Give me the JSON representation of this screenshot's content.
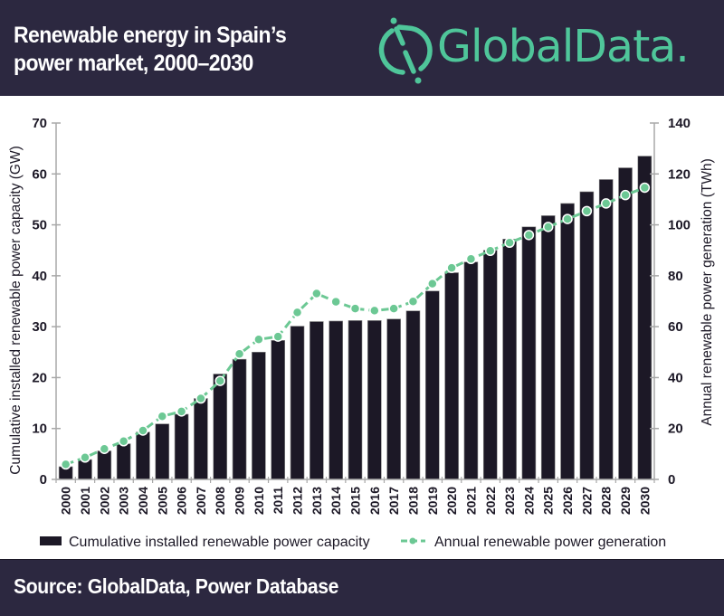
{
  "header": {
    "title_line1": "Renewable energy in Spain’s",
    "title_line2": "power market, 2000–2030",
    "logo_text": "GlobalData.",
    "logo_icon": "globaldata-logo-icon"
  },
  "footer": {
    "source": "Source: GlobalData, Power Database"
  },
  "colors": {
    "background_dark": "#2c2840",
    "bar": "#1c1826",
    "line": "#6cc894",
    "brand": "#4fc69a",
    "axis": "#a8a8a8"
  },
  "chart_data": {
    "type": "bar",
    "title": "Renewable energy in Spain’s power market, 2000–2030",
    "categories": [
      "2000",
      "2001",
      "2002",
      "2003",
      "2004",
      "2005",
      "2006",
      "2007",
      "2008",
      "2009",
      "2010",
      "2011",
      "2012",
      "2013",
      "2014",
      "2015",
      "2016",
      "2017",
      "2018",
      "2019",
      "2020",
      "2021",
      "2022",
      "2023",
      "2024",
      "2025",
      "2026",
      "2027",
      "2028",
      "2029",
      "2030"
    ],
    "series": [
      {
        "name": "Cumulative installed renewable power capacity",
        "type": "bar",
        "axis": "left",
        "unit": "GW",
        "values": [
          2.5,
          3.9,
          5.6,
          7.0,
          9.3,
          10.9,
          12.8,
          15.9,
          20.7,
          23.6,
          25.0,
          27.3,
          30.1,
          31.0,
          31.1,
          31.2,
          31.2,
          31.5,
          33.1,
          37.0,
          40.6,
          42.7,
          45.0,
          47.2,
          49.6,
          51.8,
          54.2,
          56.5,
          58.9,
          61.2,
          63.5
        ]
      },
      {
        "name": "Annual renewable power generation",
        "type": "line",
        "axis": "right",
        "unit": "TWh",
        "values": [
          5.9,
          8.6,
          12.0,
          15.0,
          19.2,
          24.8,
          26.7,
          31.8,
          38.7,
          49.3,
          55.0,
          56.1,
          65.6,
          73.0,
          69.8,
          67.1,
          66.3,
          67.1,
          69.9,
          76.9,
          83.1,
          86.6,
          89.8,
          93.0,
          96.0,
          99.2,
          102.3,
          105.4,
          108.4,
          111.7,
          114.6
        ]
      }
    ],
    "xlabel": "",
    "ylabel": "Cumulative installed renewable power capacity (GW)",
    "ylabel_right": "Annual renewable power generation (TWh)",
    "ylim": [
      0,
      70
    ],
    "ylim_right": [
      0,
      140
    ],
    "yticks": [
      "0",
      "10",
      "20",
      "30",
      "40",
      "50",
      "60",
      "70"
    ],
    "yticks_right": [
      "0",
      "20",
      "40",
      "60",
      "80",
      "100",
      "120",
      "140"
    ],
    "grid": false,
    "legend": {
      "position": "bottom",
      "entries": [
        "Cumulative installed renewable power capacity",
        "Annual renewable power generation"
      ]
    }
  }
}
